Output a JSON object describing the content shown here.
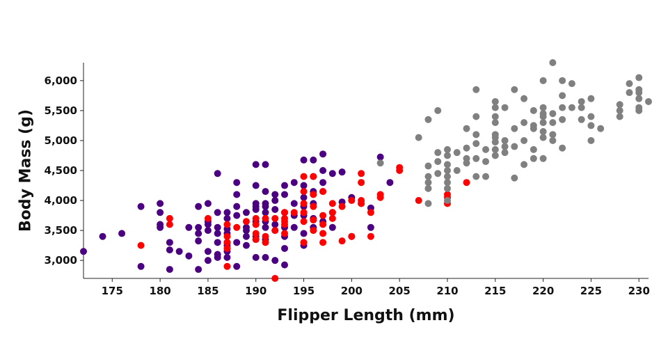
{
  "chart_data": {
    "type": "scatter",
    "title": "",
    "xlabel": "Flipper Length (mm)",
    "ylabel": "Body Mass (g)",
    "xlim": [
      172,
      231
    ],
    "ylim": [
      2700,
      6300
    ],
    "grid": false,
    "legend": "none",
    "x_ticks": [
      175,
      180,
      185,
      190,
      195,
      200,
      205,
      210,
      215,
      220,
      225,
      230
    ],
    "x_tick_labels": [
      "175",
      "180",
      "185",
      "190",
      "195",
      "200",
      "205",
      "210",
      "215",
      "220",
      "225",
      "230"
    ],
    "y_ticks": [
      3000,
      3500,
      4000,
      4500,
      5000,
      5500,
      6000
    ],
    "y_tick_labels": [
      "3,000",
      "3,500",
      "4,000",
      "4,500",
      "5,000",
      "5,500",
      "6,000"
    ],
    "series": [
      {
        "color": "#4b0082",
        "points": [
          [
            172,
            3150
          ],
          [
            174,
            3400
          ],
          [
            176,
            3450
          ],
          [
            178,
            3900
          ],
          [
            178,
            2900
          ],
          [
            180,
            3950
          ],
          [
            180,
            3800
          ],
          [
            180,
            3600
          ],
          [
            180,
            3550
          ],
          [
            181,
            3300
          ],
          [
            181,
            3175
          ],
          [
            181,
            2850
          ],
          [
            182,
            3150
          ],
          [
            183,
            3550
          ],
          [
            183,
            3075
          ],
          [
            184,
            3900
          ],
          [
            184,
            3550
          ],
          [
            184,
            3450
          ],
          [
            184,
            3325
          ],
          [
            184,
            2850
          ],
          [
            185,
            3950
          ],
          [
            185,
            3650
          ],
          [
            185,
            3600
          ],
          [
            185,
            3500
          ],
          [
            185,
            3150
          ],
          [
            185,
            3000
          ],
          [
            186,
            4450
          ],
          [
            186,
            3800
          ],
          [
            186,
            3550
          ],
          [
            186,
            3450
          ],
          [
            186,
            3300
          ],
          [
            186,
            3100
          ],
          [
            186,
            3050
          ],
          [
            187,
            3800
          ],
          [
            187,
            3700
          ],
          [
            187,
            3525
          ],
          [
            187,
            3450
          ],
          [
            187,
            3300
          ],
          [
            187,
            3250
          ],
          [
            187,
            3150
          ],
          [
            187,
            3050
          ],
          [
            188,
            4300
          ],
          [
            188,
            4100
          ],
          [
            188,
            3900
          ],
          [
            188,
            3750
          ],
          [
            188,
            3300
          ],
          [
            188,
            2900
          ],
          [
            189,
            3800
          ],
          [
            189,
            3550
          ],
          [
            189,
            3500
          ],
          [
            189,
            3400
          ],
          [
            189,
            3250
          ],
          [
            190,
            4600
          ],
          [
            190,
            4250
          ],
          [
            190,
            3950
          ],
          [
            190,
            3900
          ],
          [
            190,
            3850
          ],
          [
            190,
            3650
          ],
          [
            190,
            3600
          ],
          [
            190,
            3400
          ],
          [
            190,
            3350
          ],
          [
            190,
            3050
          ],
          [
            191,
            4600
          ],
          [
            191,
            4150
          ],
          [
            191,
            3950
          ],
          [
            191,
            3900
          ],
          [
            191,
            3800
          ],
          [
            191,
            3650
          ],
          [
            191,
            3550
          ],
          [
            191,
            3350
          ],
          [
            191,
            3050
          ],
          [
            192,
            4100
          ],
          [
            192,
            4000
          ],
          [
            192,
            3850
          ],
          [
            192,
            3600
          ],
          [
            192,
            3500
          ],
          [
            192,
            3000
          ],
          [
            193,
            4250
          ],
          [
            193,
            4100
          ],
          [
            193,
            3800
          ],
          [
            193,
            3550
          ],
          [
            193,
            3400
          ],
          [
            193,
            3200
          ],
          [
            193,
            2925
          ],
          [
            194,
            4300
          ],
          [
            194,
            3950
          ],
          [
            194,
            3750
          ],
          [
            194,
            3550
          ],
          [
            195,
            4675
          ],
          [
            195,
            4250
          ],
          [
            195,
            4050
          ],
          [
            195,
            3900
          ],
          [
            195,
            3750
          ],
          [
            195,
            3450
          ],
          [
            195,
            3250
          ],
          [
            196,
            4675
          ],
          [
            196,
            4400
          ],
          [
            196,
            4150
          ],
          [
            196,
            3950
          ],
          [
            196,
            3700
          ],
          [
            196,
            3550
          ],
          [
            197,
            4775
          ],
          [
            197,
            4500
          ],
          [
            197,
            4300
          ],
          [
            197,
            4150
          ],
          [
            197,
            3650
          ],
          [
            198,
            4450
          ],
          [
            198,
            3800
          ],
          [
            198,
            3550
          ],
          [
            199,
            4475
          ],
          [
            199,
            3975
          ],
          [
            200,
            4050
          ],
          [
            200,
            3400
          ],
          [
            201,
            3950
          ],
          [
            202,
            3875
          ],
          [
            202,
            3550
          ],
          [
            203,
            4725
          ],
          [
            204,
            4300
          ]
        ]
      },
      {
        "color": "#ff0000",
        "points": [
          [
            178,
            3250
          ],
          [
            181,
            3700
          ],
          [
            181,
            3600
          ],
          [
            185,
            3700
          ],
          [
            187,
            3600
          ],
          [
            187,
            3400
          ],
          [
            187,
            3300
          ],
          [
            187,
            3200
          ],
          [
            187,
            2900
          ],
          [
            188,
            3550
          ],
          [
            189,
            3650
          ],
          [
            190,
            3700
          ],
          [
            190,
            3600
          ],
          [
            190,
            3450
          ],
          [
            190,
            3350
          ],
          [
            191,
            3700
          ],
          [
            191,
            3400
          ],
          [
            191,
            3300
          ],
          [
            192,
            3700
          ],
          [
            192,
            3500
          ],
          [
            192,
            2700
          ],
          [
            193,
            3800
          ],
          [
            193,
            3700
          ],
          [
            193,
            3650
          ],
          [
            193,
            3600
          ],
          [
            193,
            3450
          ],
          [
            194,
            3800
          ],
          [
            195,
            4400
          ],
          [
            195,
            4150
          ],
          [
            195,
            3950
          ],
          [
            195,
            3800
          ],
          [
            195,
            3650
          ],
          [
            195,
            3300
          ],
          [
            196,
            4400
          ],
          [
            196,
            4100
          ],
          [
            196,
            3900
          ],
          [
            196,
            3675
          ],
          [
            196,
            3500
          ],
          [
            197,
            4150
          ],
          [
            197,
            3750
          ],
          [
            197,
            3600
          ],
          [
            197,
            3450
          ],
          [
            197,
            3300
          ],
          [
            198,
            3950
          ],
          [
            198,
            3800
          ],
          [
            198,
            3700
          ],
          [
            199,
            3900
          ],
          [
            199,
            3325
          ],
          [
            200,
            4000
          ],
          [
            200,
            3400
          ],
          [
            201,
            4450
          ],
          [
            201,
            4300
          ],
          [
            201,
            4000
          ],
          [
            201,
            3950
          ],
          [
            202,
            3800
          ],
          [
            202,
            3400
          ],
          [
            203,
            4100
          ],
          [
            203,
            4050
          ],
          [
            205,
            4550
          ],
          [
            205,
            4500
          ],
          [
            207,
            4000
          ],
          [
            210,
            4100
          ],
          [
            210,
            4050
          ],
          [
            210,
            3950
          ],
          [
            212,
            4300
          ]
        ]
      },
      {
        "color": "#808080",
        "points": [
          [
            203,
            4625
          ],
          [
            207,
            5050
          ],
          [
            208,
            5350
          ],
          [
            208,
            4575
          ],
          [
            208,
            4400
          ],
          [
            208,
            4300
          ],
          [
            208,
            4200
          ],
          [
            208,
            3950
          ],
          [
            209,
            5500
          ],
          [
            209,
            4800
          ],
          [
            209,
            4650
          ],
          [
            209,
            4450
          ],
          [
            210,
            4850
          ],
          [
            210,
            4750
          ],
          [
            210,
            4600
          ],
          [
            210,
            4500
          ],
          [
            210,
            4400
          ],
          [
            210,
            4300
          ],
          [
            210,
            4200
          ],
          [
            210,
            4000
          ],
          [
            211,
            4800
          ],
          [
            211,
            4500
          ],
          [
            212,
            5200
          ],
          [
            212,
            4875
          ],
          [
            212,
            4700
          ],
          [
            212,
            4625
          ],
          [
            213,
            5850
          ],
          [
            213,
            5400
          ],
          [
            213,
            5100
          ],
          [
            213,
            4950
          ],
          [
            213,
            4700
          ],
          [
            213,
            4400
          ],
          [
            214,
            4850
          ],
          [
            214,
            4650
          ],
          [
            214,
            4400
          ],
          [
            215,
            5650
          ],
          [
            215,
            5550
          ],
          [
            215,
            5400
          ],
          [
            215,
            5300
          ],
          [
            215,
            5100
          ],
          [
            215,
            5050
          ],
          [
            215,
            4975
          ],
          [
            215,
            4850
          ],
          [
            215,
            4750
          ],
          [
            216,
            5550
          ],
          [
            216,
            5000
          ],
          [
            216,
            4900
          ],
          [
            216,
            4800
          ],
          [
            217,
            5850
          ],
          [
            217,
            5200
          ],
          [
            217,
            4900
          ],
          [
            217,
            4375
          ],
          [
            218,
            5700
          ],
          [
            218,
            5300
          ],
          [
            218,
            5000
          ],
          [
            218,
            4600
          ],
          [
            219,
            5500
          ],
          [
            219,
            5250
          ],
          [
            219,
            5200
          ],
          [
            219,
            4850
          ],
          [
            219,
            4700
          ],
          [
            220,
            6000
          ],
          [
            220,
            5550
          ],
          [
            220,
            5450
          ],
          [
            220,
            5400
          ],
          [
            220,
            5300
          ],
          [
            220,
            5150
          ],
          [
            220,
            5050
          ],
          [
            220,
            4700
          ],
          [
            221,
            6300
          ],
          [
            221,
            5450
          ],
          [
            221,
            5300
          ],
          [
            221,
            5100
          ],
          [
            221,
            5000
          ],
          [
            222,
            6000
          ],
          [
            222,
            5750
          ],
          [
            222,
            5550
          ],
          [
            222,
            5350
          ],
          [
            222,
            4875
          ],
          [
            223,
            5950
          ],
          [
            223,
            5550
          ],
          [
            224,
            5650
          ],
          [
            224,
            5550
          ],
          [
            224,
            5350
          ],
          [
            225,
            5700
          ],
          [
            225,
            5400
          ],
          [
            225,
            5250
          ],
          [
            225,
            5000
          ],
          [
            226,
            5200
          ],
          [
            228,
            5600
          ],
          [
            228,
            5500
          ],
          [
            228,
            5400
          ],
          [
            229,
            5950
          ],
          [
            229,
            5800
          ],
          [
            230,
            6050
          ],
          [
            230,
            5850
          ],
          [
            230,
            5800
          ],
          [
            230,
            5700
          ],
          [
            230,
            5550
          ],
          [
            230,
            5500
          ],
          [
            231,
            5650
          ]
        ]
      }
    ]
  }
}
